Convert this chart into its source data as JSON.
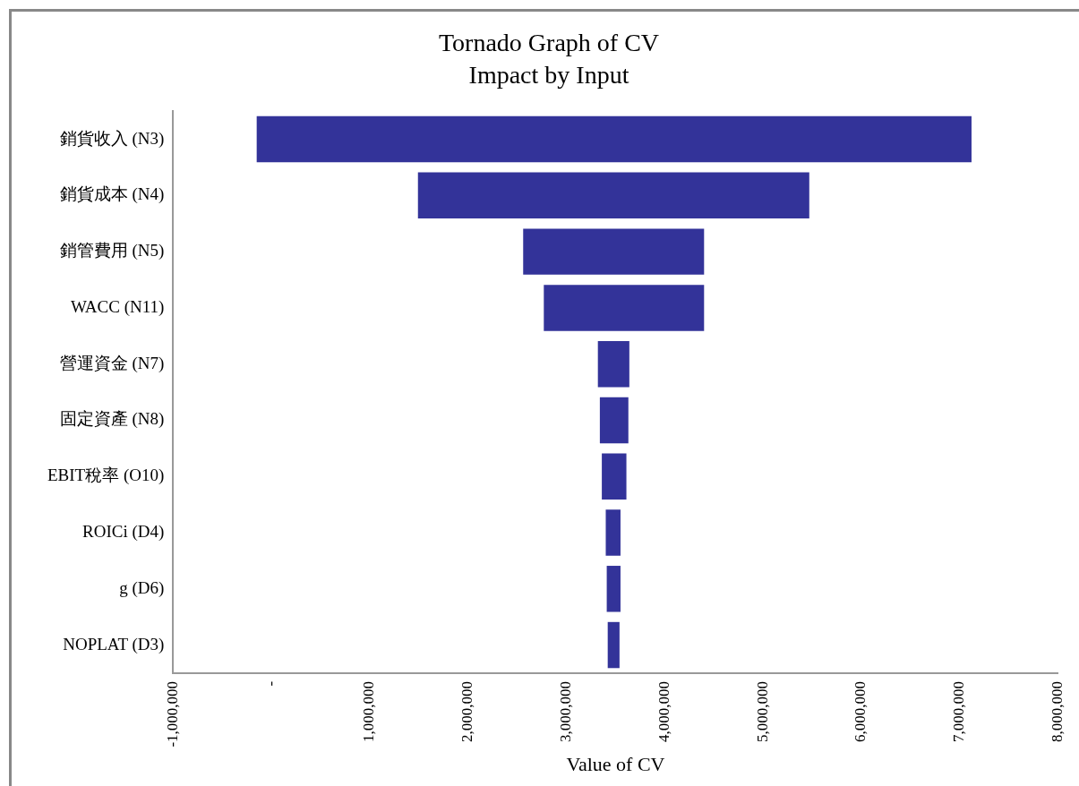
{
  "chart_data": {
    "type": "bar",
    "orientation": "horizontal",
    "title": "Tornado Graph of CV",
    "subtitle": "Impact by Input",
    "xlabel": "Value of CV",
    "categories": [
      "銷貨收入 (N3)",
      "銷貨成本 (N4)",
      "銷管費用 (N5)",
      "WACC (N11)",
      "營運資金 (N7)",
      "固定資產 (N8)",
      "EBIT稅率 (O10)",
      "ROICi (D4)",
      "g (D6)",
      "NOPLAT (D3)"
    ],
    "base": [
      -150000,
      1490000,
      2560000,
      2770000,
      3320000,
      3340000,
      3360000,
      3400000,
      3410000,
      3420000
    ],
    "values": [
      7270000,
      3980000,
      1840000,
      1630000,
      320000,
      290000,
      250000,
      150000,
      140000,
      120000
    ],
    "color": "#333399",
    "xlim": [
      -1000000,
      8000000
    ],
    "xticks": [
      {
        "value": -1000000,
        "label": "-1,000,000"
      },
      {
        "value": 0,
        "label": "-"
      },
      {
        "value": 1000000,
        "label": "1,000,000"
      },
      {
        "value": 2000000,
        "label": "2,000,000"
      },
      {
        "value": 3000000,
        "label": "3,000,000"
      },
      {
        "value": 4000000,
        "label": "4,000,000"
      },
      {
        "value": 5000000,
        "label": "5,000,000"
      },
      {
        "value": 6000000,
        "label": "6,000,000"
      },
      {
        "value": 7000000,
        "label": "7,000,000"
      },
      {
        "value": 8000000,
        "label": "8,000,000"
      }
    ],
    "grid": false,
    "legend": false
  }
}
